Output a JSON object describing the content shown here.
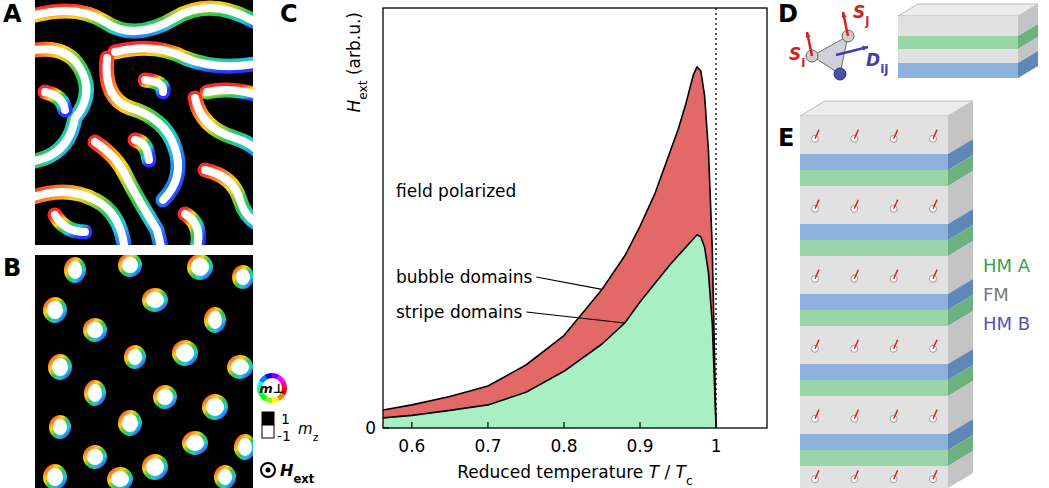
{
  "chart_data": {
    "type": "area",
    "panel": "C",
    "x_label": "Reduced temperature T / Tc",
    "y_label": "Hext (arb.u.)",
    "xlim": [
      0.562,
      1.067
    ],
    "ylim": [
      0,
      1
    ],
    "xticks": [
      0.6,
      0.7,
      0.8,
      0.9,
      1
    ],
    "yticks": [
      0
    ],
    "x": [
      0.562,
      0.6,
      0.65,
      0.7,
      0.75,
      0.8,
      0.85,
      0.88,
      0.9,
      0.92,
      0.94,
      0.95,
      0.96,
      0.97,
      0.975,
      0.98,
      0.985,
      0.99,
      0.995,
      1.0
    ],
    "series": [
      {
        "name": "bubble domains",
        "color": "#e36868",
        "values": [
          0.043,
          0.055,
          0.075,
          0.1,
          0.15,
          0.22,
          0.33,
          0.41,
          0.48,
          0.56,
          0.66,
          0.71,
          0.77,
          0.84,
          0.86,
          0.85,
          0.79,
          0.66,
          0.43,
          0
        ]
      },
      {
        "name": "stripe domains",
        "color": "#a8f0c4",
        "values": [
          0.024,
          0.03,
          0.042,
          0.055,
          0.085,
          0.135,
          0.2,
          0.25,
          0.3,
          0.345,
          0.39,
          0.41,
          0.43,
          0.45,
          0.46,
          0.455,
          0.43,
          0.37,
          0.25,
          0
        ]
      }
    ],
    "annotations": [
      "field polarized"
    ],
    "vline": 1
  },
  "panels": {
    "labels": [
      "A",
      "B",
      "D",
      "E"
    ],
    "colorbar": {
      "in_plane": "m⊥",
      "out_of_plane": "mz",
      "ticks": [
        1,
        -1
      ],
      "field": "Hext"
    },
    "schematic": {
      "spin_i": "Si",
      "spin_j": "Sj",
      "dmi": "Dij",
      "layers": [
        {
          "name": "HM A",
          "color": "#3f9d4f"
        },
        {
          "name": "FM",
          "color": "#7a7a7a"
        },
        {
          "name": "HM B",
          "color": "#4f55b5"
        }
      ]
    }
  }
}
